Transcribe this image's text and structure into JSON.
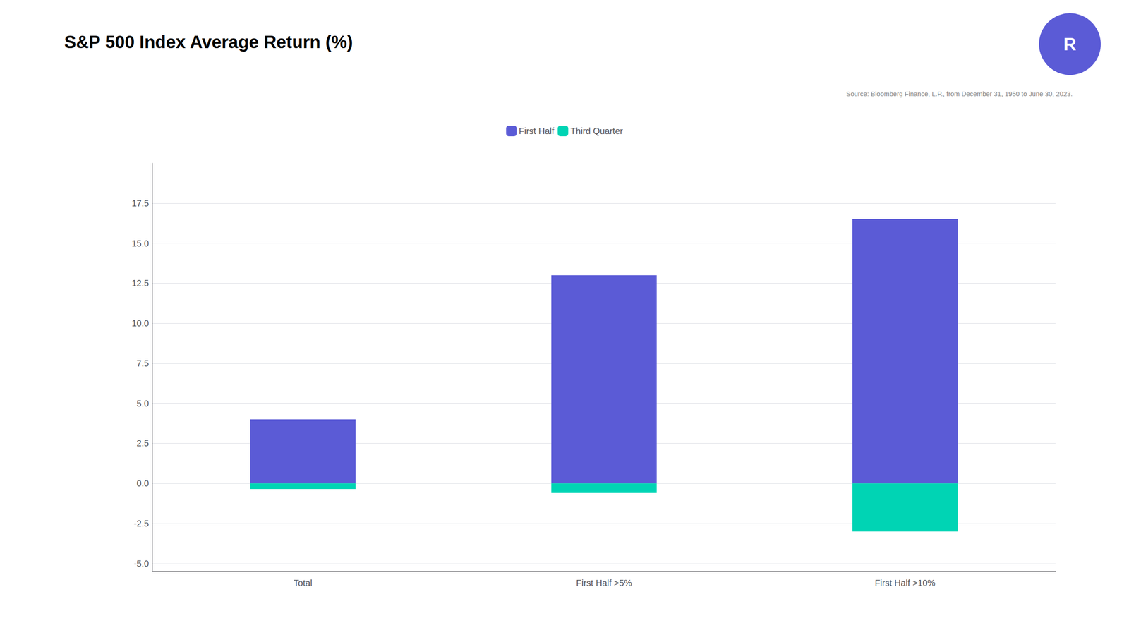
{
  "chart_data": {
    "type": "bar",
    "title": "S&P 500 Index Average Return (%)",
    "annotations": [
      "Source: Bloomberg Finance, L.P., from December 31, 1950 to June 30, 2023.",
      "R"
    ],
    "categories": [
      "Total",
      "First Half >5%",
      "First Half >10%"
    ],
    "series": [
      {
        "name": "First Half",
        "color": "#5B5BD6",
        "values": [
          4.0,
          13.0,
          16.5
        ]
      },
      {
        "name": "Third Quarter",
        "color": "#00D4B4",
        "values": [
          -0.35,
          -0.6,
          -3.0
        ]
      }
    ],
    "ylim": [
      -5.5,
      20.0
    ],
    "yticks": [
      {
        "value": -5.0,
        "label": "-5.0"
      },
      -2.5,
      {
        "value": 0.0,
        "label": "0.0"
      },
      2.5,
      {
        "value": 5.0,
        "label": "5.0"
      },
      7.5,
      {
        "value": 10.0,
        "label": "10.0"
      },
      12.5,
      {
        "value": 15.0,
        "label": "15.0"
      },
      17.5
    ],
    "grid": true,
    "legend": "top"
  }
}
